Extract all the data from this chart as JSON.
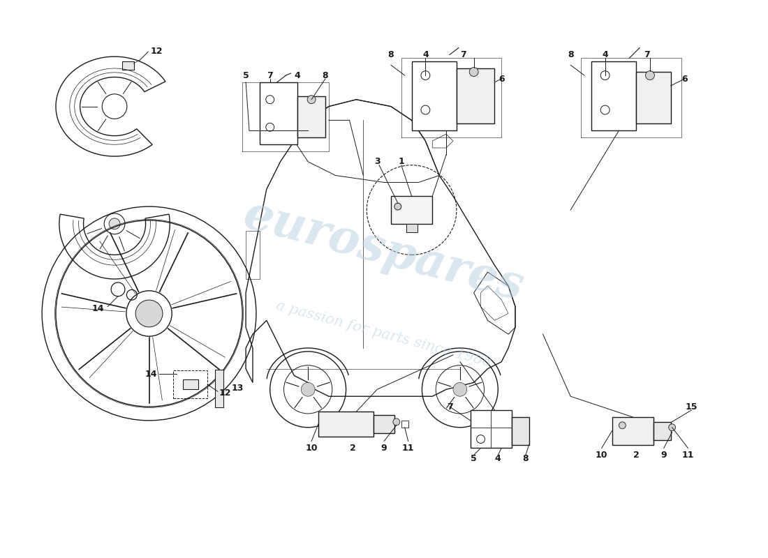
{
  "bg_color": "#ffffff",
  "line_color": "#1a1a1a",
  "watermark_color": "#b8cfe0",
  "watermark1": "eurospares",
  "watermark2": "a passion for parts since 1988",
  "figsize": [
    11.0,
    8.0
  ],
  "dpi": 100
}
